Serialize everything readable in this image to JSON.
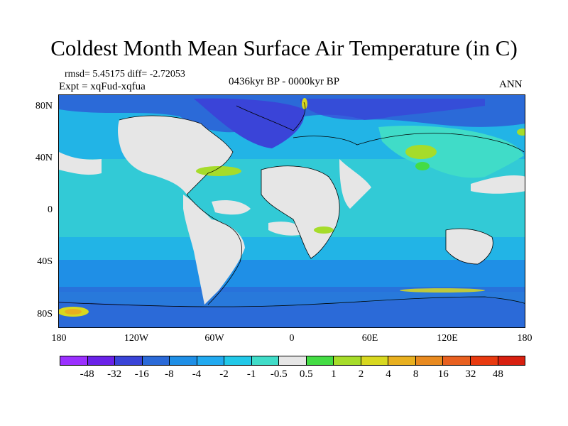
{
  "title": "Coldest Month Mean Surface Air Temperature (in C)",
  "stats": "rmsd= 5.45175 diff= -2.72053",
  "experiment": "Expt = xqFud-xqfua",
  "period": "0436kyr BP - 0000kyr BP",
  "season": "ANN",
  "axes": {
    "x_ticks": [
      "180",
      "120W",
      "60W",
      "0",
      "60E",
      "120E",
      "180"
    ],
    "y_ticks": [
      "80N",
      "40N",
      "0",
      "40S",
      "80S"
    ]
  },
  "colorbar": {
    "labels": [
      "-48",
      "-32",
      "-16",
      "-8",
      "-4",
      "-2",
      "-1",
      "-0.5",
      "0.5",
      "1",
      "2",
      "4",
      "8",
      "16",
      "32",
      "48"
    ],
    "colors": [
      "#9b30ff",
      "#6a22e8",
      "#3a44d8",
      "#2b6ad8",
      "#1f8fe6",
      "#22aaf0",
      "#22c8e8",
      "#40dcc8",
      "#e6e6e6",
      "#44dc44",
      "#a6dc2a",
      "#d8d820",
      "#e8b020",
      "#e88a20",
      "#e86020",
      "#e83a10",
      "#d82010"
    ]
  },
  "colors": {
    "ocean_base": "#22b4e6",
    "land_neutral": "#e6e6e6",
    "coastline": "#000000"
  }
}
